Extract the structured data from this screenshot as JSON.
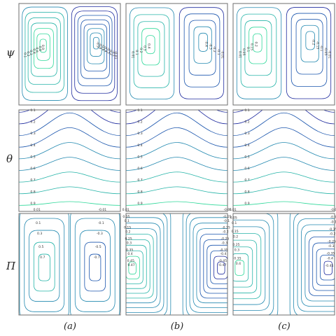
{
  "row_labels": [
    "ψ",
    "θ",
    "Π"
  ],
  "column_labels": [
    "(a)",
    "(b)",
    "(c)"
  ],
  "colors": {
    "frame": "#6e6e6e",
    "contour_scale": [
      "#2fd89a",
      "#26b4a8",
      "#2389b0",
      "#1a55ad",
      "#1d2a9e"
    ]
  },
  "panels": {
    "psi": {
      "a": [
        "0.9",
        "0.8",
        "0.6",
        "0.4",
        "0.3",
        "0.2",
        "0.1",
        "-0.9",
        "-0.8",
        "-0.6",
        "-0.4",
        "-0.3",
        "-0.2",
        "-0.1",
        "-0.01"
      ],
      "b": [
        "0.4",
        "0.3",
        "0.2",
        "0.1",
        "0.01",
        "-0.4",
        "-0.3",
        "-0.2",
        "-0.1",
        "-0.01"
      ],
      "c": [
        "0.2",
        "0.15",
        "0.1",
        "0.05",
        "0.01",
        "-0.2",
        "-0.15",
        "-0.1",
        "-0.05",
        "-0.01"
      ]
    },
    "theta": {
      "a": [
        "0.1",
        "0.2",
        "0.3",
        "0.4",
        "0.5",
        "0.6",
        "0.7",
        "0.8",
        "0.9"
      ],
      "b": [
        "0.1",
        "0.2",
        "0.3",
        "0.4",
        "0.5",
        "0.6",
        "0.7",
        "0.8",
        "0.9"
      ],
      "c": [
        "0.1",
        "0.2",
        "0.3",
        "0.4",
        "0.5",
        "0.6",
        "0.7",
        "0.8",
        "0.9"
      ]
    },
    "pi": {
      "a": [
        "0.01",
        "0.1",
        "0.3",
        "0.5",
        "0.7",
        "-0.01",
        "-0.1",
        "-0.3",
        "-0.5",
        "-0.7"
      ],
      "b": [
        "0.01",
        "0.05",
        "0.1",
        "0.15",
        "0.2",
        "0.25",
        "0.3",
        "0.35",
        "0.4",
        "0.45",
        "0.47",
        "-0.01",
        "-0.05",
        "-0.1",
        "-0.15",
        "-0.2",
        "-0.25",
        "-0.3",
        "-0.35",
        "-0.4",
        "-0.45",
        "-0.47"
      ],
      "c": [
        "0.01",
        "0.05",
        "0.1",
        "0.15",
        "0.2",
        "0.25",
        "0.3",
        "0.35",
        "0.4",
        "-0.01",
        "-0.05",
        "-0.1",
        "-0.15",
        "-0.2",
        "-0.25",
        "-0.3",
        "-0.35",
        "-0.4",
        "-0.45"
      ]
    }
  }
}
